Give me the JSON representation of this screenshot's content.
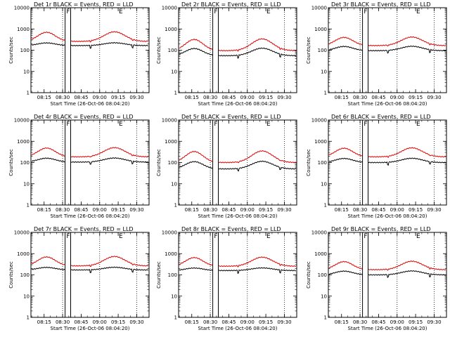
{
  "colors": {
    "events": "#000000",
    "lld": "#e00000",
    "background": "#ffffff"
  },
  "chart_data": [
    {
      "type": "line",
      "title": "Det 1r BLACK = Events, RED = LLD",
      "xlabel": "Start Time (26-Oct-06 08:04:20)",
      "ylabel": "Counts/sec",
      "yscale": "log",
      "ylim": [
        1,
        10000
      ],
      "xlim": [
        "08:04:20",
        "09:40:00"
      ],
      "x_tick_labels": [
        "08:15",
        "08:30",
        "08:45",
        "09:00",
        "09:15",
        "09:30"
      ],
      "y_tick_labels": [
        "1",
        "10",
        "100",
        "1000",
        "10000"
      ],
      "flags": [
        "F",
        "E"
      ],
      "events_base": 165,
      "events_peak": 220,
      "lld_base": 260,
      "lld_peak": 700
    },
    {
      "type": "line",
      "title": "Det 2r BLACK = Events, RED = LLD",
      "xlabel": "Start Time (26-Oct-06 08:04:20)",
      "ylabel": "Counts/sec",
      "yscale": "log",
      "ylim": [
        1,
        10000
      ],
      "xlim": [
        "08:04:20",
        "09:40:00"
      ],
      "x_tick_labels": [
        "08:15",
        "08:30",
        "08:45",
        "09:00",
        "09:15",
        "09:30"
      ],
      "y_tick_labels": [
        "1",
        "10",
        "100",
        "1000",
        "10000"
      ],
      "flags": [
        "F",
        "E"
      ],
      "events_base": 55,
      "events_peak": 120,
      "lld_base": 95,
      "lld_peak": 320
    },
    {
      "type": "line",
      "title": "Det 3r BLACK = Events, RED = LLD",
      "xlabel": "Start Time (26-Oct-06 08:04:20)",
      "ylabel": "Counts/sec",
      "yscale": "log",
      "ylim": [
        1,
        10000
      ],
      "xlim": [
        "08:04:20",
        "09:40:00"
      ],
      "x_tick_labels": [
        "08:15",
        "08:30",
        "08:45",
        "09:00",
        "09:15",
        "09:30"
      ],
      "y_tick_labels": [
        "1",
        "10",
        "100",
        "1000",
        "10000"
      ],
      "flags": [
        "F",
        "E"
      ],
      "events_base": 95,
      "events_peak": 150,
      "lld_base": 165,
      "lld_peak": 400
    },
    {
      "type": "line",
      "title": "Det 4r BLACK = Events, RED = LLD",
      "xlabel": "Start Time (26-Oct-06 08:04:20)",
      "ylabel": "Counts/sec",
      "yscale": "log",
      "ylim": [
        1,
        10000
      ],
      "xlim": [
        "08:04:20",
        "09:40:00"
      ],
      "x_tick_labels": [
        "08:15",
        "08:30",
        "08:45",
        "09:00",
        "09:15",
        "09:30"
      ],
      "y_tick_labels": [
        "1",
        "10",
        "100",
        "1000",
        "10000"
      ],
      "flags": [
        "F",
        "E"
      ],
      "events_base": 105,
      "events_peak": 160,
      "lld_base": 185,
      "lld_peak": 480
    },
    {
      "type": "line",
      "title": "Det 5r BLACK = Events, RED = LLD",
      "xlabel": "Start Time (26-Oct-06 08:04:20)",
      "ylabel": "Counts/sec",
      "yscale": "log",
      "ylim": [
        1,
        10000
      ],
      "xlim": [
        "08:04:20",
        "09:40:00"
      ],
      "x_tick_labels": [
        "08:15",
        "08:30",
        "08:45",
        "09:00",
        "09:15",
        "09:30"
      ],
      "y_tick_labels": [
        "1",
        "10",
        "100",
        "1000",
        "10000"
      ],
      "flags": [
        "F",
        "E"
      ],
      "events_base": 50,
      "events_peak": 110,
      "lld_base": 100,
      "lld_peak": 330
    },
    {
      "type": "line",
      "title": "Det 6r BLACK = Events, RED = LLD",
      "xlabel": "Start Time (26-Oct-06 08:04:20)",
      "ylabel": "Counts/sec",
      "yscale": "log",
      "ylim": [
        1,
        10000
      ],
      "xlim": [
        "08:04:20",
        "09:40:00"
      ],
      "x_tick_labels": [
        "08:15",
        "08:30",
        "08:45",
        "09:00",
        "09:15",
        "09:30"
      ],
      "y_tick_labels": [
        "1",
        "10",
        "100",
        "1000",
        "10000"
      ],
      "flags": [
        "F",
        "E"
      ],
      "events_base": 100,
      "events_peak": 155,
      "lld_base": 185,
      "lld_peak": 470
    },
    {
      "type": "line",
      "title": "Det 7r BLACK = Events, RED = LLD",
      "xlabel": "Start Time (26-Oct-06 08:04:20)",
      "ylabel": "Counts/sec",
      "yscale": "log",
      "ylim": [
        1,
        10000
      ],
      "xlim": [
        "08:04:20",
        "09:40:00"
      ],
      "x_tick_labels": [
        "08:15",
        "08:30",
        "08:45",
        "09:00",
        "09:15",
        "09:30"
      ],
      "y_tick_labels": [
        "1",
        "10",
        "100",
        "1000",
        "10000"
      ],
      "flags": [
        "F",
        "E"
      ],
      "events_base": 170,
      "events_peak": 225,
      "lld_base": 265,
      "lld_peak": 700
    },
    {
      "type": "line",
      "title": "Det 8r BLACK = Events, RED = LLD",
      "xlabel": "Start Time (26-Oct-06 08:04:20)",
      "ylabel": "Counts/sec",
      "yscale": "log",
      "ylim": [
        1,
        10000
      ],
      "xlim": [
        "08:04:20",
        "09:40:00"
      ],
      "x_tick_labels": [
        "08:15",
        "08:30",
        "08:45",
        "09:00",
        "09:15",
        "09:30"
      ],
      "y_tick_labels": [
        "1",
        "10",
        "100",
        "1000",
        "10000"
      ],
      "flags": [
        "F",
        "E"
      ],
      "events_base": 160,
      "events_peak": 210,
      "lld_base": 255,
      "lld_peak": 650
    },
    {
      "type": "line",
      "title": "Det 9r BLACK = Events, RED = LLD",
      "xlabel": "Start Time (26-Oct-06 08:04:20)",
      "ylabel": "Counts/sec",
      "yscale": "log",
      "ylim": [
        1,
        10000
      ],
      "xlim": [
        "08:04:20",
        "09:40:00"
      ],
      "x_tick_labels": [
        "08:15",
        "08:30",
        "08:45",
        "09:00",
        "09:15",
        "09:30"
      ],
      "y_tick_labels": [
        "1",
        "10",
        "100",
        "1000",
        "10000"
      ],
      "flags": [
        "F",
        "E"
      ],
      "events_base": 100,
      "events_peak": 150,
      "lld_base": 175,
      "lld_peak": 420
    }
  ]
}
